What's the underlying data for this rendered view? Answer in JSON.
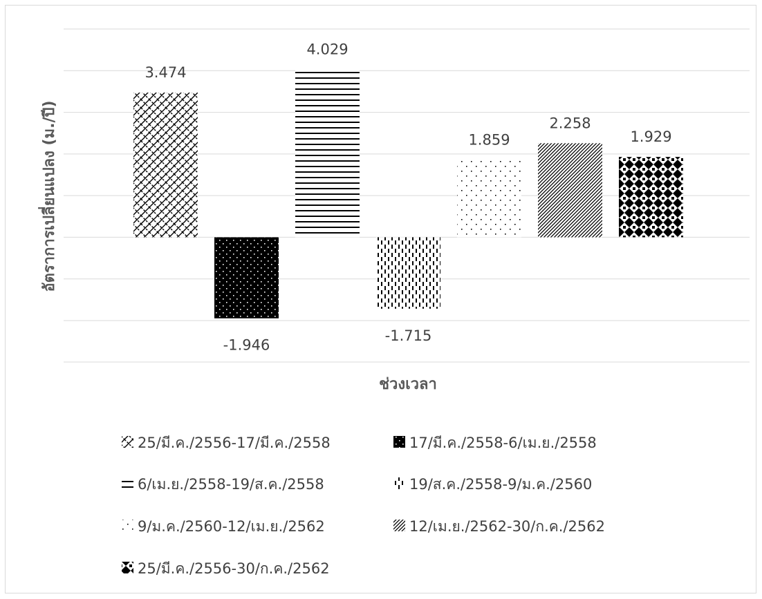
{
  "chart_data": {
    "type": "bar",
    "title": "",
    "xlabel": "ช่วงเวลา",
    "ylabel": "อัตราการเปลี่ยนแปลง (ม./ปี)",
    "ylim": [
      -2,
      5
    ],
    "grid": true,
    "legend_position": "bottom",
    "series": [
      {
        "name": "25/มี.ค./2556-17/มี.ค./2558",
        "value": 3.474,
        "label": "3.474",
        "pattern": "crosshatch"
      },
      {
        "name": "17/มี.ค./2558-6/เม.ย./2558",
        "value": -1.946,
        "label": "-1.946",
        "pattern": "dark-dots"
      },
      {
        "name": "6/เม.ย./2558-19/ส.ค./2558",
        "value": 4.029,
        "label": "4.029",
        "pattern": "horizontal-lines"
      },
      {
        "name": "19/ส.ค./2558-9/ม.ค./2560",
        "value": -1.715,
        "label": "-1.715",
        "pattern": "dashed-vertical"
      },
      {
        "name": "9/ม.ค./2560-12/เม.ย./2562",
        "value": 1.859,
        "label": "1.859",
        "pattern": "sparse-dots"
      },
      {
        "name": "12/เม.ย./2562-30/ก.ค./2562",
        "value": 2.258,
        "label": "2.258",
        "pattern": "diagonal-lines"
      },
      {
        "name": "25/มี.ค./2556-30/ก.ค./2562",
        "value": 1.929,
        "label": "1.929",
        "pattern": "diamond-plaid"
      }
    ]
  }
}
